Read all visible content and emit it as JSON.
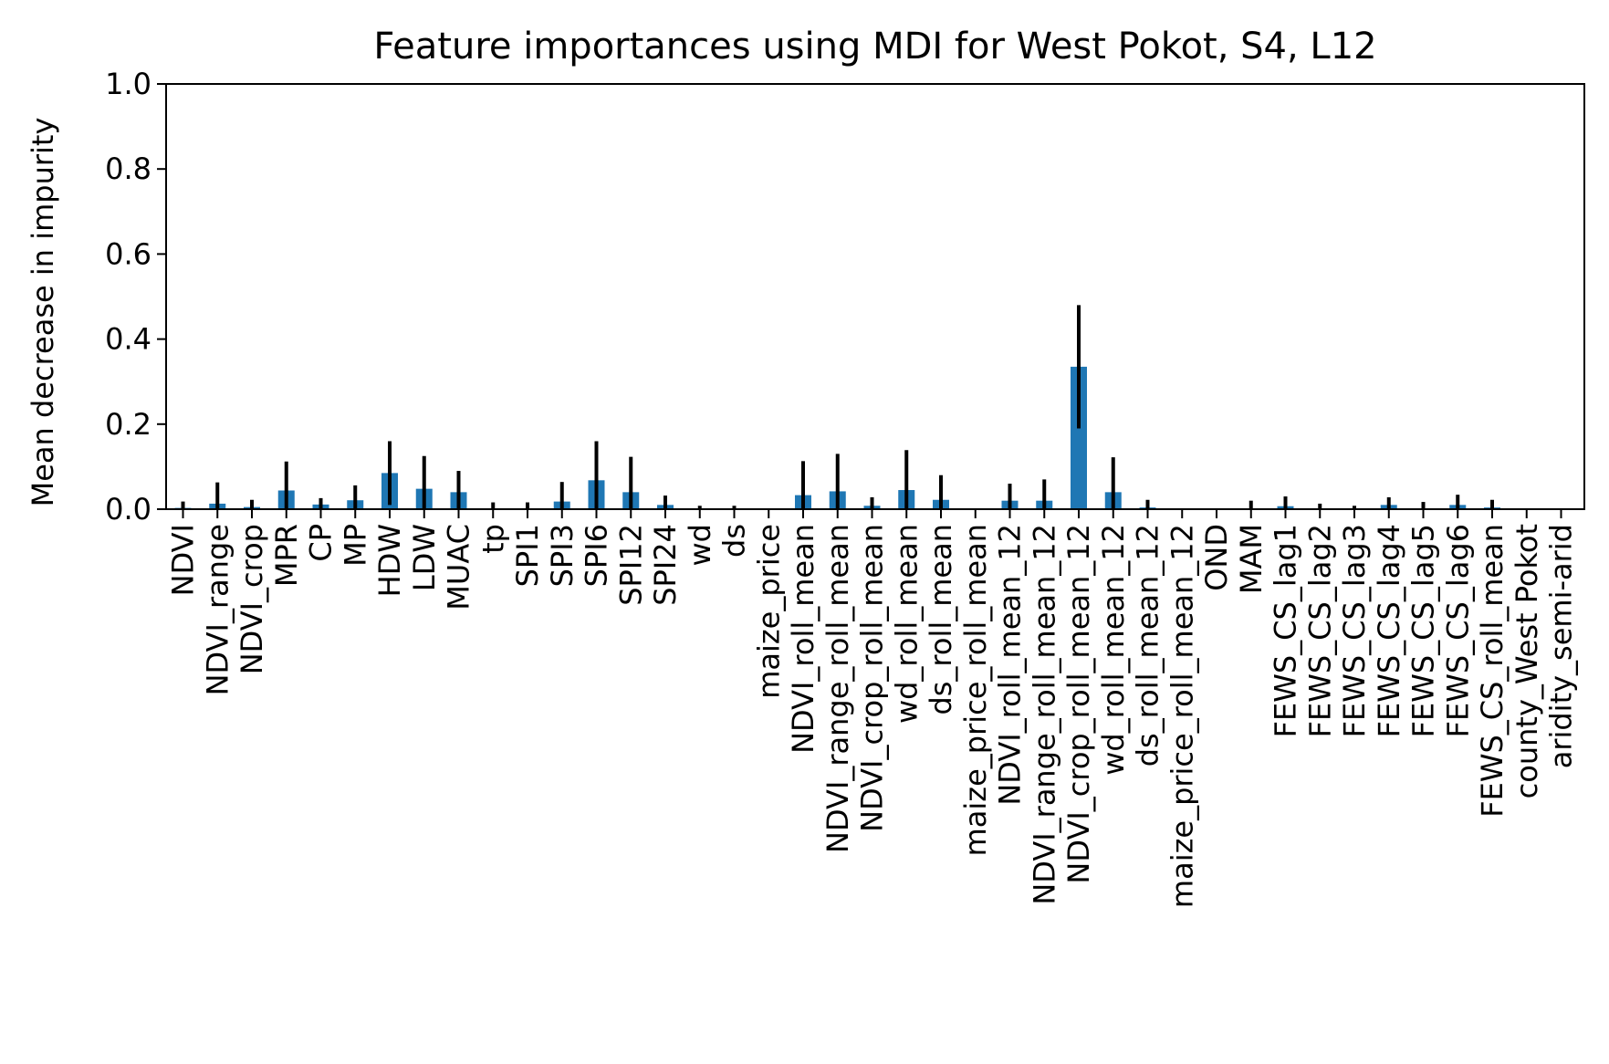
{
  "chart_data": {
    "type": "bar",
    "title": "Feature importances using MDI for West Pokot, S4, L12",
    "xlabel": "",
    "ylabel": "Mean decrease in impurity",
    "ylim": [
      0,
      1.0
    ],
    "yticks": [
      "0.0",
      "0.2",
      "0.4",
      "0.6",
      "0.8",
      "1.0"
    ],
    "grid": false,
    "bar_color": "#1f77b4",
    "error_color": "#000000",
    "categories": [
      "NDVI",
      "NDVI_range",
      "NDVI_crop",
      "MPR",
      "CP",
      "MP",
      "HDW",
      "LDW",
      "MUAC",
      "tp",
      "SPI1",
      "SPI3",
      "SPI6",
      "SPI12",
      "SPI24",
      "wd",
      "ds",
      "maize_price",
      "NDVI_roll_mean",
      "NDVI_range_roll_mean",
      "NDVI_crop_roll_mean",
      "wd_roll_mean",
      "ds_roll_mean",
      "maize_price_roll_mean",
      "NDVI_roll_mean_12",
      "NDVI_range_roll_mean_12",
      "NDVI_crop_roll_mean_12",
      "wd_roll_mean_12",
      "ds_roll_mean_12",
      "maize_price_roll_mean_12",
      "OND",
      "MAM",
      "FEWS_CS_lag1",
      "FEWS_CS_lag2",
      "FEWS_CS_lag3",
      "FEWS_CS_lag4",
      "FEWS_CS_lag5",
      "FEWS_CS_lag6",
      "FEWS_CS_roll_mean",
      "county_West Pokot",
      "aridity_semi-arid"
    ],
    "values": [
      0.003,
      0.013,
      0.005,
      0.044,
      0.011,
      0.021,
      0.085,
      0.048,
      0.04,
      0.002,
      0.002,
      0.018,
      0.068,
      0.04,
      0.01,
      0.001,
      0.001,
      0.0,
      0.033,
      0.042,
      0.008,
      0.045,
      0.022,
      0.0,
      0.02,
      0.02,
      0.335,
      0.04,
      0.004,
      0.0,
      0.0,
      0.002,
      0.007,
      0.002,
      0.001,
      0.01,
      0.002,
      0.01,
      0.004,
      0.0,
      0.0
    ],
    "errors": [
      0.015,
      0.05,
      0.017,
      0.068,
      0.015,
      0.035,
      0.075,
      0.077,
      0.05,
      0.014,
      0.014,
      0.046,
      0.092,
      0.083,
      0.022,
      0.007,
      0.007,
      0.0,
      0.08,
      0.088,
      0.02,
      0.094,
      0.058,
      0.0,
      0.04,
      0.05,
      0.145,
      0.082,
      0.018,
      0.0,
      0.0,
      0.018,
      0.023,
      0.011,
      0.007,
      0.018,
      0.015,
      0.024,
      0.018,
      0.0,
      0.0
    ]
  }
}
